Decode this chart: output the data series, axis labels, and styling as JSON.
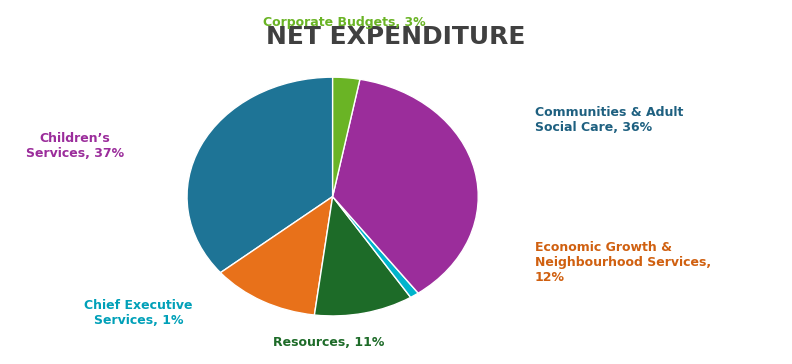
{
  "title": "NET EXPENDITURE",
  "title_fontsize": 18,
  "title_fontweight": "bold",
  "title_color": "#404040",
  "slices": [
    {
      "label": "Communities & Adult\nSocial Care, 36%",
      "value": 36,
      "color": "#1e7496",
      "text_color": "#1e6080"
    },
    {
      "label": "Economic Growth &\nNeighbourhood Services,\n12%",
      "value": 12,
      "color": "#e8711a",
      "text_color": "#d06010"
    },
    {
      "label": "Resources, 11%",
      "value": 11,
      "color": "#1d6b28",
      "text_color": "#1d6b28"
    },
    {
      "label": "Chief Executive\nServices, 1%",
      "value": 1,
      "color": "#00b4cc",
      "text_color": "#00a0b8"
    },
    {
      "label": "Children’s\nServices, 37%",
      "value": 37,
      "color": "#9b2d9b",
      "text_color": "#9b2d9b"
    },
    {
      "label": "Corporate Budgets, 3%",
      "value": 3,
      "color": "#6ab425",
      "text_color": "#6ab425"
    }
  ],
  "startangle": 90,
  "background_color": "#ffffff",
  "label_fontsize": 9,
  "label_fontweight": "bold"
}
